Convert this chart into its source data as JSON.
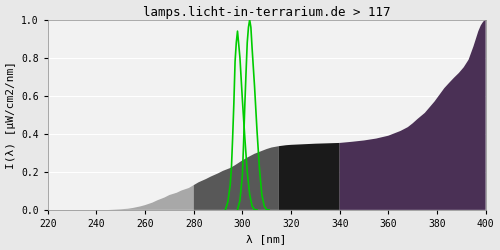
{
  "title": "lamps.licht-in-terrarium.de > 117",
  "xlabel": "λ [nm]",
  "ylabel": "I(λ) [µW/cm2/nm]",
  "xlim": [
    220,
    400
  ],
  "ylim": [
    0.0,
    1.0
  ],
  "xticks": [
    220,
    240,
    260,
    280,
    300,
    320,
    340,
    360,
    380,
    400
  ],
  "yticks": [
    0.0,
    0.2,
    0.4,
    0.6,
    0.8,
    1.0
  ],
  "background_color": "#e8e8e8",
  "plot_bg_color": "#f2f2f2",
  "grid_color": "#ffffff",
  "spectrum_wavelengths": [
    220,
    245,
    250,
    253,
    255,
    258,
    260,
    263,
    265,
    268,
    270,
    273,
    275,
    278,
    280,
    282,
    285,
    287,
    290,
    292,
    295,
    297,
    300,
    302,
    305,
    308,
    310,
    312,
    315,
    318,
    320,
    325,
    330,
    335,
    340,
    345,
    350,
    355,
    360,
    362,
    365,
    368,
    370,
    372,
    375,
    377,
    379,
    381,
    383,
    385,
    387,
    389,
    391,
    393,
    395,
    396,
    397,
    398,
    399,
    400
  ],
  "spectrum_values": [
    0,
    0,
    0.003,
    0.006,
    0.01,
    0.018,
    0.025,
    0.038,
    0.05,
    0.065,
    0.078,
    0.09,
    0.102,
    0.115,
    0.13,
    0.145,
    0.162,
    0.175,
    0.192,
    0.205,
    0.22,
    0.235,
    0.26,
    0.275,
    0.295,
    0.31,
    0.32,
    0.328,
    0.335,
    0.34,
    0.342,
    0.345,
    0.348,
    0.35,
    0.352,
    0.358,
    0.365,
    0.375,
    0.39,
    0.4,
    0.415,
    0.435,
    0.455,
    0.478,
    0.51,
    0.54,
    0.57,
    0.605,
    0.64,
    0.668,
    0.695,
    0.72,
    0.75,
    0.79,
    0.86,
    0.9,
    0.94,
    0.97,
    0.99,
    1.0
  ],
  "color_bands": [
    {
      "xmin": 220,
      "xmax": 280,
      "color": "#a8a8a8",
      "alpha": 1.0
    },
    {
      "xmin": 280,
      "xmax": 315,
      "color": "#585858",
      "alpha": 1.0
    },
    {
      "xmin": 315,
      "xmax": 340,
      "color": "#1a1a1a",
      "alpha": 1.0
    },
    {
      "xmin": 340,
      "xmax": 400,
      "color": "#4a3055",
      "alpha": 1.0
    }
  ],
  "vitd3_line1_wl": [
    293,
    294,
    295,
    295.5,
    296,
    296.5,
    297,
    297.5,
    298,
    299,
    300,
    301,
    302,
    303,
    304,
    305,
    306
  ],
  "vitd3_line1_vals": [
    0.0,
    0.04,
    0.13,
    0.22,
    0.38,
    0.56,
    0.78,
    0.88,
    0.94,
    0.8,
    0.58,
    0.38,
    0.2,
    0.08,
    0.02,
    0.0,
    0.0
  ],
  "vitd3_line2_wl": [
    298,
    299,
    300,
    300.5,
    301,
    301.5,
    302,
    302.5,
    303,
    303.5,
    304,
    305,
    306,
    307,
    308,
    309,
    310,
    311
  ],
  "vitd3_line2_vals": [
    0.0,
    0.05,
    0.18,
    0.35,
    0.55,
    0.72,
    0.88,
    0.96,
    1.0,
    0.96,
    0.85,
    0.65,
    0.42,
    0.22,
    0.08,
    0.02,
    0.0,
    0.0
  ],
  "vitd3_color": "#00cc00",
  "vitd3_linewidth": 1.2,
  "title_fontsize": 9,
  "axis_fontsize": 8,
  "tick_fontsize": 7,
  "font_family": "monospace"
}
